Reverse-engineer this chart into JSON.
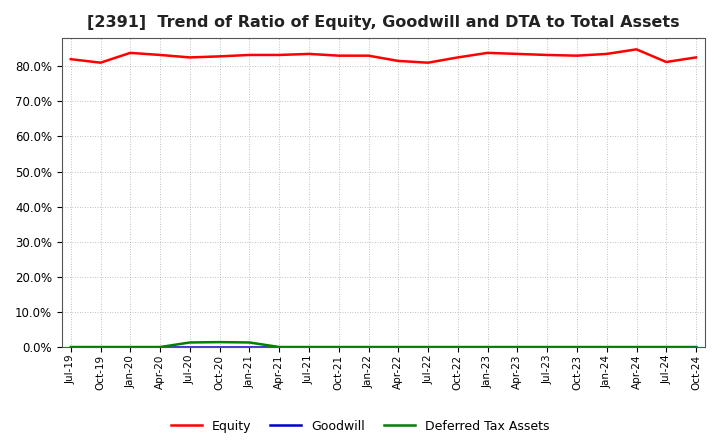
{
  "title": "[2391]  Trend of Ratio of Equity, Goodwill and DTA to Total Assets",
  "title_fontsize": 11.5,
  "background_color": "#ffffff",
  "plot_bg_color": "#ffffff",
  "grid_color": "#999999",
  "equity_color": "#ff0000",
  "goodwill_color": "#0000cc",
  "dta_color": "#008000",
  "ylim": [
    0,
    88
  ],
  "yticks": [
    0,
    10,
    20,
    30,
    40,
    50,
    60,
    70,
    80
  ],
  "legend_labels": [
    "Equity",
    "Goodwill",
    "Deferred Tax Assets"
  ],
  "x_labels": [
    "Jul-19",
    "Oct-19",
    "Jan-20",
    "Apr-20",
    "Jul-20",
    "Oct-20",
    "Jan-21",
    "Apr-21",
    "Jul-21",
    "Oct-21",
    "Jan-22",
    "Apr-22",
    "Jul-22",
    "Oct-22",
    "Jan-23",
    "Apr-23",
    "Jul-23",
    "Oct-23",
    "Jan-24",
    "Apr-24",
    "Jul-24",
    "Oct-24"
  ],
  "equity_values": [
    82.0,
    81.0,
    83.8,
    83.2,
    82.5,
    82.8,
    83.2,
    83.2,
    83.5,
    83.0,
    83.0,
    81.5,
    81.0,
    82.5,
    83.8,
    83.5,
    83.2,
    83.0,
    83.5,
    84.8,
    81.2,
    82.5
  ],
  "goodwill_values": [
    0.0,
    0.0,
    0.0,
    0.0,
    0.0,
    0.0,
    0.0,
    0.0,
    0.0,
    0.0,
    0.0,
    0.0,
    0.0,
    0.0,
    0.0,
    0.0,
    0.0,
    0.0,
    0.0,
    0.0,
    0.0,
    0.0
  ],
  "dta_values": [
    0.0,
    0.0,
    0.0,
    0.0,
    1.3,
    1.4,
    1.3,
    0.0,
    0.0,
    0.0,
    0.0,
    0.0,
    0.0,
    0.0,
    0.0,
    0.0,
    0.0,
    0.0,
    0.0,
    0.0,
    0.0,
    0.0
  ]
}
